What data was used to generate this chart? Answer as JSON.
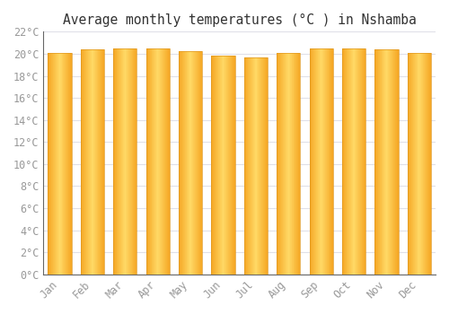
{
  "title": "Average monthly temperatures (°C ) in Nshamba",
  "months": [
    "Jan",
    "Feb",
    "Mar",
    "Apr",
    "May",
    "Jun",
    "Jul",
    "Aug",
    "Sep",
    "Oct",
    "Nov",
    "Dec"
  ],
  "temperatures": [
    20.1,
    20.4,
    20.5,
    20.5,
    20.2,
    19.8,
    19.7,
    20.1,
    20.5,
    20.5,
    20.4,
    20.1
  ],
  "ylim": [
    0,
    22
  ],
  "yticks": [
    0,
    2,
    4,
    6,
    8,
    10,
    12,
    14,
    16,
    18,
    20,
    22
  ],
  "bar_color_edge": "#F5A623",
  "bar_color_center": "#FFD966",
  "bar_outline_color": "#E09820",
  "background_color": "#FFFFFF",
  "grid_color": "#E0E0E8",
  "title_fontsize": 10.5,
  "tick_fontsize": 8.5,
  "title_font": "monospace",
  "tick_font": "monospace",
  "tick_color": "#999999",
  "bar_width": 0.72,
  "gradient_steps": 40
}
